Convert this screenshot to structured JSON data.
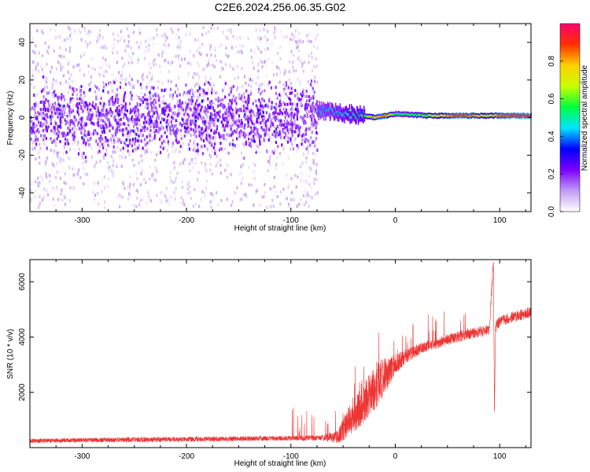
{
  "title": "C2E6.2024.256.06.35.G02",
  "chart_data": [
    {
      "type": "heatmap",
      "xlabel": "Height of straight line (km)",
      "ylabel": "Frequency (Hz)",
      "xlim": [
        -350,
        130
      ],
      "ylim": [
        -50,
        50
      ],
      "xticks": [
        -300,
        -200,
        -100,
        0,
        100
      ],
      "yticks": [
        -40,
        -20,
        0,
        20,
        40
      ],
      "colorbar": {
        "label": "Normalized spectral amplitude",
        "range": [
          0,
          1
        ],
        "ticks": [
          0.0,
          0.2,
          0.4,
          0.6,
          0.8
        ],
        "tick_labels": [
          "0.0",
          "0.2",
          "0.4",
          "0.6",
          "0.8"
        ],
        "colors": [
          "#ffffff",
          "#c19bf5",
          "#7b00ff",
          "#0000ff",
          "#00e5ff",
          "#00ff40",
          "#c8ff00",
          "#ffd000",
          "#ff3000",
          "#ff0070"
        ]
      },
      "noise_band": {
        "x_range": [
          -350,
          -75
        ],
        "freq_halfwidth": 48,
        "core_halfwidth": 12,
        "amplitude": 0.2
      },
      "signal_track": [
        {
          "x": -75,
          "freq": 4,
          "amp": 0.4
        },
        {
          "x": -60,
          "freq": 3,
          "amp": 0.45
        },
        {
          "x": -45,
          "freq": 2,
          "amp": 0.5
        },
        {
          "x": -30,
          "freq": 1,
          "amp": 0.55
        },
        {
          "x": -20,
          "freq": 0,
          "amp": 0.8
        },
        {
          "x": -10,
          "freq": 1,
          "amp": 0.85
        },
        {
          "x": 0,
          "freq": 2,
          "amp": 0.5
        },
        {
          "x": 30,
          "freq": 1,
          "amp": 0.6
        },
        {
          "x": 60,
          "freq": 1,
          "amp": 0.9
        },
        {
          "x": 90,
          "freq": 1,
          "amp": 0.7
        },
        {
          "x": 100,
          "freq": 1,
          "amp": 0.85
        },
        {
          "x": 130,
          "freq": 1,
          "amp": 0.95
        }
      ]
    },
    {
      "type": "line",
      "xlabel": "Height of straight line (km)",
      "ylabel": "SNR (10 * v/v)",
      "xlim": [
        -350,
        130
      ],
      "ylim": [
        0,
        6800
      ],
      "xticks": [
        -300,
        -200,
        -100,
        0,
        100
      ],
      "yticks": [
        2000,
        4000,
        6000
      ],
      "series": [
        {
          "color": "#ee3333",
          "x": [
            -350,
            -300,
            -250,
            -200,
            -150,
            -100,
            -70,
            -55,
            -45,
            -35,
            -25,
            -15,
            -5,
            0,
            10,
            25,
            50,
            75,
            90,
            94,
            95,
            96,
            100,
            110,
            120,
            130
          ],
          "y": [
            250,
            270,
            290,
            300,
            320,
            340,
            350,
            400,
            900,
            1400,
            1900,
            2400,
            2800,
            3000,
            3300,
            3600,
            3900,
            4150,
            4250,
            6700,
            1200,
            4350,
            4550,
            4700,
            4800,
            4900
          ],
          "noise": [
            80,
            80,
            90,
            90,
            90,
            90,
            100,
            250,
            550,
            700,
            800,
            800,
            500,
            400,
            250,
            200,
            200,
            200,
            200,
            200,
            200,
            200,
            200,
            200,
            200,
            200
          ]
        }
      ]
    }
  ]
}
